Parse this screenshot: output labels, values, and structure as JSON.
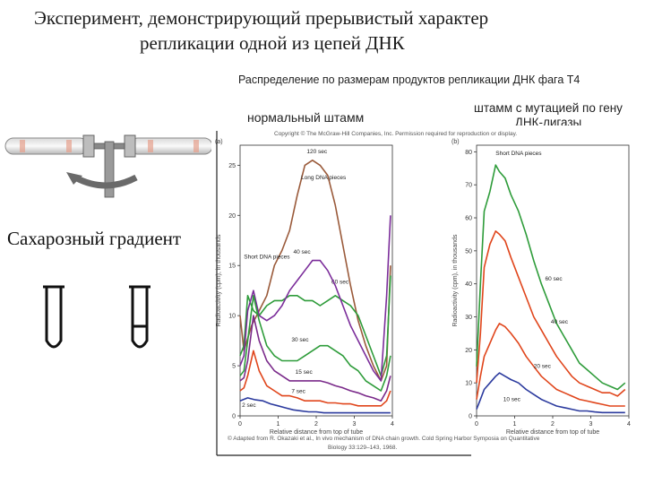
{
  "slide": {
    "title_line1": "Эксперимент, демонстрирующий прерывистый характер",
    "title_line2": "репликации одной из цепей ДНК",
    "subtitle": "Распределение по размерам продуктов репликации ДНК фага Т4",
    "strain_normal": "нормальный штамм",
    "strain_mutant_line1": "штамм с мутацией по гену",
    "strain_mutant_line2": "ДНК-лигазы",
    "gradient_label": "Сахарозный градиент",
    "copyright": "Copyright © The McGraw-Hill Companies, Inc. Permission required for reproduction or display.",
    "credit_line1": "© Adapted from R. Okazaki et al., In vivo mechanism of DNA chain growth. Cold Spring Harbor Symposia on Quantitative",
    "credit_line2": "Biology 33:129–143, 1968."
  },
  "colors": {
    "s2": "#2b3a9e",
    "s7": "#e0451b",
    "s15": "#7a2a8a",
    "s30": "#2e9c3a",
    "s40": "#7b2d9a",
    "s60": "#2e9c3a",
    "s120": "#9a5a3a"
  },
  "chart_data": [
    {
      "type": "line",
      "panel_label": "(a)",
      "xlabel": "Relative distance from top of tube",
      "ylabel": "Radioactivity (cpm), in thousands",
      "xlim": [
        0,
        4
      ],
      "ylim": [
        0,
        27
      ],
      "x_ticks": [
        0,
        1,
        2,
        3,
        4
      ],
      "y_ticks": [
        0,
        5,
        10,
        15,
        20,
        25
      ],
      "annotations": [
        {
          "text": "Long DNA pieces",
          "x": 1.6,
          "y": 23.6
        },
        {
          "text": "Short DNA pieces",
          "x": 0.1,
          "y": 15.7
        }
      ],
      "series": [
        {
          "name": "120 sec",
          "color": "#9a5a3a",
          "x": [
            0,
            0.1,
            0.3,
            0.5,
            0.7,
            0.9,
            1.1,
            1.3,
            1.5,
            1.7,
            1.9,
            2.1,
            2.3,
            2.5,
            2.7,
            2.9,
            3.1,
            3.3,
            3.5,
            3.7,
            3.85,
            3.95
          ],
          "y": [
            10,
            6.5,
            9,
            10.5,
            12,
            15,
            16.5,
            18.5,
            22,
            25,
            25.5,
            25,
            24,
            21,
            17,
            13,
            9.5,
            7,
            5,
            3.5,
            5,
            15
          ]
        },
        {
          "name": "60 sec",
          "color": "#2e9c3a",
          "x": [
            0,
            0.1,
            0.2,
            0.35,
            0.5,
            0.7,
            0.9,
            1.1,
            1.3,
            1.5,
            1.7,
            1.9,
            2.1,
            2.3,
            2.5,
            2.7,
            2.9,
            3.1,
            3.3,
            3.5,
            3.7,
            3.85,
            3.95
          ],
          "y": [
            6,
            7,
            12,
            10.5,
            10,
            11,
            11.5,
            11.5,
            12,
            12,
            11.5,
            11.5,
            11,
            11.5,
            12,
            11.5,
            11,
            10,
            8,
            6,
            4,
            6,
            14
          ]
        },
        {
          "name": "40 sec",
          "color": "#7b2d9a",
          "x": [
            0,
            0.1,
            0.2,
            0.35,
            0.5,
            0.7,
            0.9,
            1.1,
            1.3,
            1.5,
            1.7,
            1.9,
            2.1,
            2.3,
            2.5,
            2.7,
            2.9,
            3.1,
            3.3,
            3.5,
            3.7,
            3.85,
            3.95
          ],
          "y": [
            5,
            6,
            10.5,
            12.5,
            10,
            9.5,
            10,
            11,
            12.5,
            13.5,
            14.5,
            15.5,
            15.5,
            14.5,
            13,
            11,
            9,
            7.5,
            6,
            4.5,
            3.5,
            12,
            20
          ]
        },
        {
          "name": "30 sec",
          "color": "#2e9c3a",
          "x": [
            0,
            0.1,
            0.2,
            0.35,
            0.5,
            0.7,
            0.9,
            1.1,
            1.3,
            1.5,
            1.7,
            1.9,
            2.1,
            2.3,
            2.5,
            2.7,
            2.9,
            3.1,
            3.3,
            3.5,
            3.7,
            3.85,
            3.95
          ],
          "y": [
            4,
            4.5,
            7.5,
            12,
            9.5,
            7,
            6,
            5.5,
            5.5,
            5.5,
            6,
            6.5,
            7,
            7,
            6.5,
            6,
            5,
            4.5,
            3.5,
            3,
            2.5,
            4,
            6
          ]
        },
        {
          "name": "15 sec",
          "color": "#7a2a8a",
          "x": [
            0,
            0.1,
            0.2,
            0.35,
            0.5,
            0.7,
            0.9,
            1.1,
            1.3,
            1.5,
            1.7,
            1.9,
            2.1,
            2.3,
            2.5,
            2.7,
            2.9,
            3.1,
            3.3,
            3.5,
            3.7,
            3.85,
            3.95
          ],
          "y": [
            3.5,
            3.8,
            5.5,
            10,
            7.5,
            5.5,
            4.5,
            4,
            3.5,
            3.5,
            3.5,
            3.5,
            3.5,
            3.3,
            3,
            2.8,
            2.5,
            2.3,
            2,
            1.8,
            1.5,
            2.5,
            4
          ]
        },
        {
          "name": "7 sec",
          "color": "#e0451b",
          "x": [
            0,
            0.1,
            0.2,
            0.35,
            0.5,
            0.7,
            0.9,
            1.1,
            1.3,
            1.5,
            1.7,
            1.9,
            2.1,
            2.3,
            2.5,
            2.7,
            2.9,
            3.1,
            3.3,
            3.5,
            3.7,
            3.85,
            3.95
          ],
          "y": [
            2.5,
            2.8,
            4,
            6.5,
            4.5,
            3,
            2.5,
            2,
            2,
            1.8,
            1.5,
            1.5,
            1.5,
            1.3,
            1.3,
            1.2,
            1.2,
            1,
            1,
            1,
            1,
            1.5,
            2.5
          ]
        },
        {
          "name": "2 sec",
          "color": "#2b3a9e",
          "x": [
            0,
            0.2,
            0.4,
            0.6,
            0.8,
            1.0,
            1.2,
            1.4,
            1.6,
            1.8,
            2.0,
            2.2,
            2.4,
            2.6,
            2.8,
            3.0,
            3.2,
            3.4,
            3.6,
            3.8,
            3.95
          ],
          "y": [
            1.5,
            1.8,
            1.6,
            1.5,
            1.2,
            1,
            0.8,
            0.6,
            0.5,
            0.4,
            0.4,
            0.3,
            0.3,
            0.3,
            0.3,
            0.3,
            0.3,
            0.3,
            0.3,
            0.3,
            0.3
          ]
        }
      ]
    },
    {
      "type": "line",
      "panel_label": "(b)",
      "xlabel": "Relative distance from top of tube",
      "ylabel": "Radioactivity (cpm), in thousands",
      "xlim": [
        0,
        4
      ],
      "ylim": [
        0,
        82
      ],
      "x_ticks": [
        0,
        1,
        2,
        3,
        4
      ],
      "y_ticks": [
        0,
        10,
        20,
        30,
        40,
        50,
        60,
        70,
        80
      ],
      "annotations": [
        {
          "text": "Short DNA pieces",
          "x": 0.5,
          "y": 79
        }
      ],
      "series": [
        {
          "name": "60 sec",
          "color": "#2e9c3a",
          "x": [
            0,
            0.1,
            0.2,
            0.35,
            0.5,
            0.6,
            0.75,
            0.9,
            1.1,
            1.3,
            1.5,
            1.7,
            1.9,
            2.1,
            2.3,
            2.5,
            2.7,
            2.9,
            3.1,
            3.3,
            3.5,
            3.7,
            3.9
          ],
          "y": [
            15,
            40,
            62,
            68,
            76,
            74,
            72,
            67,
            62,
            55,
            47,
            40,
            34,
            28,
            24,
            20,
            16,
            14,
            12,
            10,
            9,
            8,
            10
          ]
        },
        {
          "name": "40 sec",
          "color": "#e0451b",
          "x": [
            0,
            0.1,
            0.2,
            0.35,
            0.5,
            0.6,
            0.75,
            0.9,
            1.1,
            1.3,
            1.5,
            1.7,
            1.9,
            2.1,
            2.3,
            2.5,
            2.7,
            2.9,
            3.1,
            3.3,
            3.5,
            3.7,
            3.9
          ],
          "y": [
            10,
            25,
            45,
            52,
            56,
            55,
            53,
            48,
            42,
            36,
            30,
            26,
            22,
            18,
            15,
            12,
            10,
            9,
            8,
            7,
            7,
            6,
            8
          ]
        },
        {
          "name": "20 sec",
          "color": "#e0451b",
          "x": [
            0,
            0.1,
            0.2,
            0.35,
            0.5,
            0.6,
            0.75,
            0.9,
            1.1,
            1.3,
            1.5,
            1.7,
            1.9,
            2.1,
            2.3,
            2.5,
            2.7,
            2.9,
            3.1,
            3.3,
            3.5,
            3.7,
            3.9
          ],
          "y": [
            5,
            12,
            18,
            22,
            26,
            28,
            27,
            25,
            22,
            18,
            15,
            12,
            10,
            8,
            7,
            6,
            5,
            4.5,
            4,
            3.5,
            3,
            3,
            3
          ]
        },
        {
          "name": "10 sec",
          "color": "#2b3a9e",
          "x": [
            0,
            0.1,
            0.2,
            0.35,
            0.5,
            0.6,
            0.75,
            0.9,
            1.1,
            1.3,
            1.5,
            1.7,
            1.9,
            2.1,
            2.3,
            2.5,
            2.7,
            2.9,
            3.1,
            3.3,
            3.5,
            3.7,
            3.9
          ],
          "y": [
            2,
            5,
            8,
            10,
            12,
            13,
            12,
            11,
            10,
            8,
            6.5,
            5,
            4,
            3,
            2.5,
            2,
            1.5,
            1.5,
            1.2,
            1,
            1,
            1,
            1
          ]
        }
      ]
    }
  ]
}
